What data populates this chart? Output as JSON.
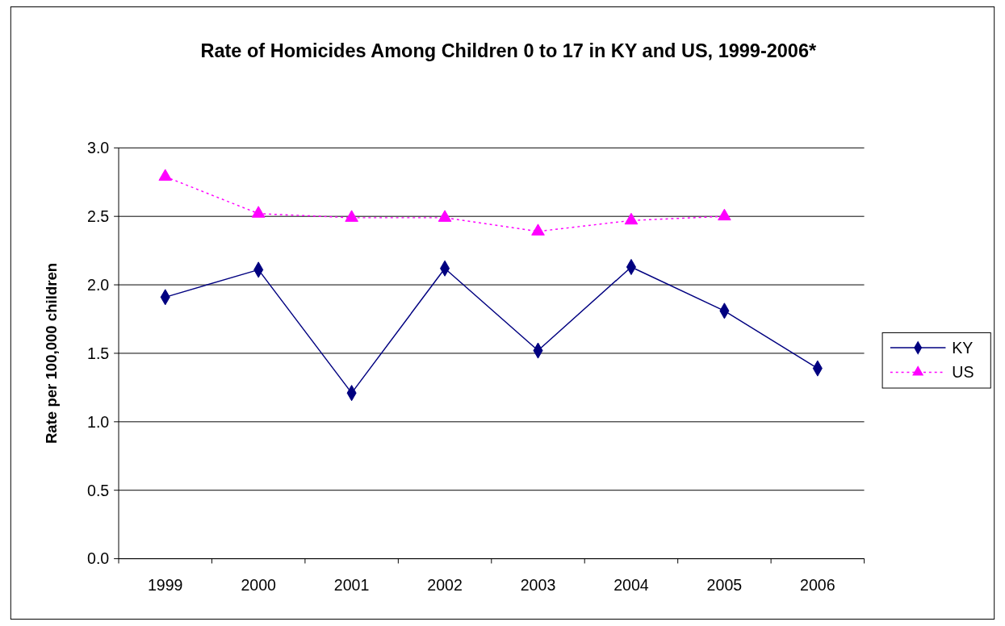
{
  "chart_data": {
    "type": "line",
    "title": "Rate of Homicides Among Children 0 to 17 in KY and US, 1999-2006*",
    "ylabel": "Rate per 100,000 children",
    "categories": [
      "1999",
      "2000",
      "2001",
      "2002",
      "2003",
      "2004",
      "2005",
      "2006"
    ],
    "ylim": [
      0,
      3
    ],
    "yticks": [
      {
        "value": 0,
        "label": "0.0"
      },
      {
        "value": 0.5,
        "label": "0.5"
      },
      {
        "value": 1,
        "label": "1.0"
      },
      {
        "value": 1.5,
        "label": "1.5"
      },
      {
        "value": 2,
        "label": "2.0"
      },
      {
        "value": 2.5,
        "label": "2.5"
      },
      {
        "value": 3,
        "label": "3.0"
      }
    ],
    "grid": "y",
    "legend": "right",
    "series": [
      {
        "name": "KY",
        "color": "#000080",
        "marker": "diamond",
        "line_style": "solid",
        "values": [
          1.91,
          2.11,
          1.21,
          2.12,
          1.52,
          2.13,
          1.81,
          1.39
        ]
      },
      {
        "name": "US",
        "color": "#ff00ff",
        "marker": "triangle",
        "line_style": "dotted",
        "values": [
          2.79,
          2.52,
          2.49,
          2.49,
          2.39,
          2.47,
          2.5,
          null
        ]
      }
    ]
  }
}
